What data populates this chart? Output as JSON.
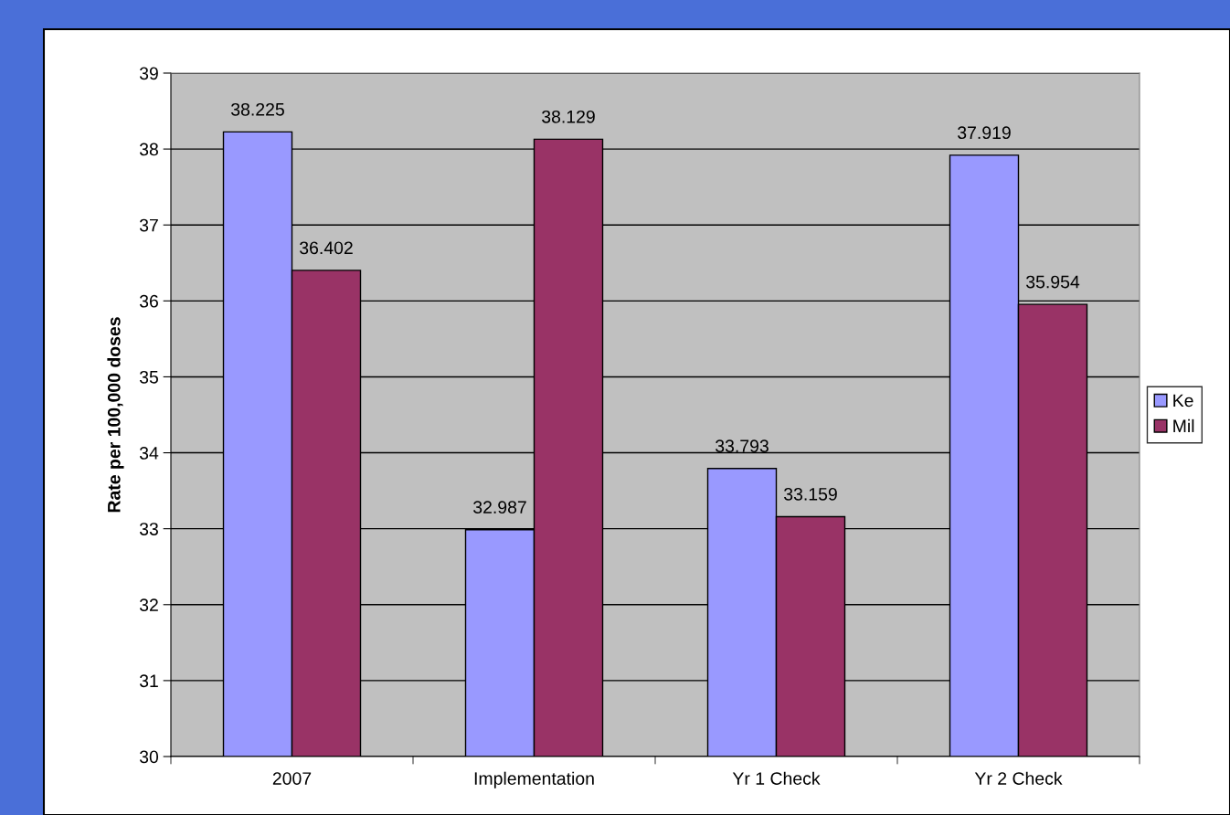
{
  "chart_data": {
    "type": "bar",
    "ylabel": "Rate per 100,000 doses",
    "categories": [
      "2007",
      "Implementation",
      "Yr 1 Check",
      "Yr 2 Check"
    ],
    "series": [
      {
        "name": "Ke",
        "color": "#9999ff",
        "values": [
          38.225,
          32.987,
          33.793,
          37.919
        ]
      },
      {
        "name": "Mil",
        "color": "#993366",
        "values": [
          36.402,
          38.129,
          33.159,
          35.954
        ]
      }
    ],
    "ylim": [
      30,
      39
    ],
    "yticks": [
      30,
      31,
      32,
      33,
      34,
      35,
      36,
      37,
      38,
      39
    ],
    "grid": "y",
    "legend": "right",
    "data_labels": true
  }
}
